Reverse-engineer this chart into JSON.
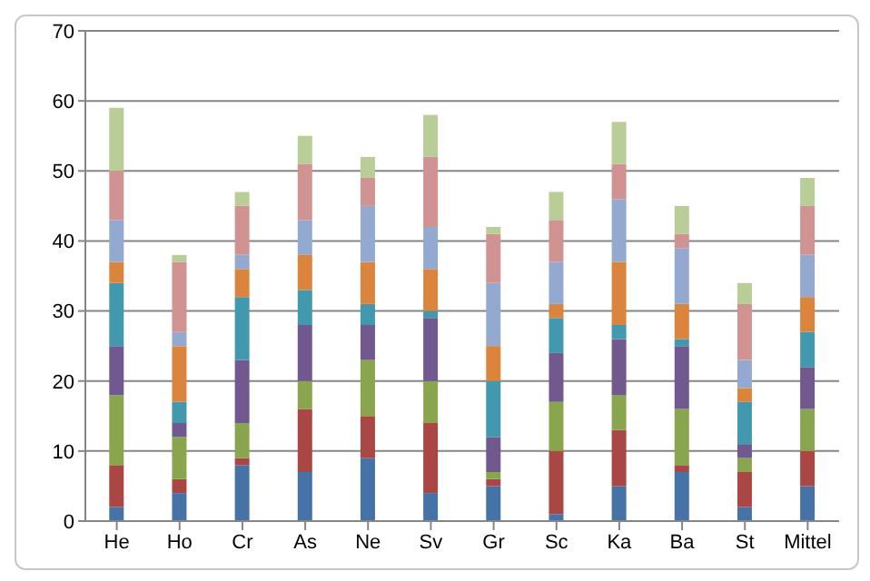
{
  "chart_data": {
    "type": "bar",
    "stacked": true,
    "categories": [
      "He",
      "Ho",
      "Cr",
      "As",
      "Ne",
      "Sv",
      "Gr",
      "Sc",
      "Ka",
      "Ba",
      "St",
      "Mittel"
    ],
    "series": [
      {
        "color": "#4572a7",
        "values": [
          2,
          4,
          8,
          7,
          9,
          4,
          5,
          1,
          5,
          7,
          2,
          5
        ]
      },
      {
        "color": "#aa4643",
        "values": [
          6,
          2,
          1,
          9,
          6,
          10,
          1,
          9,
          8,
          1,
          5,
          5
        ]
      },
      {
        "color": "#89a54e",
        "values": [
          10,
          6,
          5,
          4,
          8,
          6,
          1,
          7,
          5,
          8,
          2,
          6
        ]
      },
      {
        "color": "#71588f",
        "values": [
          7,
          2,
          9,
          8,
          5,
          9,
          5,
          7,
          8,
          9,
          2,
          6
        ]
      },
      {
        "color": "#4198af",
        "values": [
          9,
          3,
          9,
          5,
          3,
          1,
          8,
          5,
          2,
          1,
          6,
          5
        ]
      },
      {
        "color": "#db843d",
        "values": [
          3,
          8,
          4,
          5,
          6,
          6,
          5,
          2,
          9,
          5,
          2,
          5
        ]
      },
      {
        "color": "#93a9cf",
        "values": [
          6,
          2,
          2,
          5,
          8,
          6,
          9,
          6,
          9,
          8,
          4,
          6
        ]
      },
      {
        "color": "#d19392",
        "values": [
          7,
          10,
          7,
          8,
          4,
          10,
          7,
          6,
          5,
          2,
          8,
          7
        ]
      },
      {
        "color": "#b9cd96",
        "values": [
          9,
          1,
          2,
          4,
          3,
          6,
          1,
          4,
          6,
          4,
          3,
          4
        ]
      }
    ],
    "ylim": [
      0,
      70
    ],
    "yticks": [
      0,
      10,
      20,
      30,
      40,
      50,
      60,
      70
    ],
    "grid": "y",
    "legend": false
  }
}
